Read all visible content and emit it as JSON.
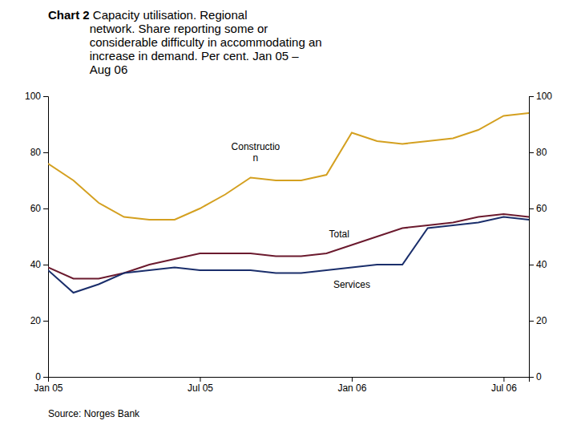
{
  "chart_data": {
    "type": "line",
    "title": "Chart 2",
    "subtitle": " Capacity utilisation. Regional\nnetwork. Share reporting some or\nconsiderable difficulty in accommodating an\nincrease in demand. Per cent. Jan 05 –\nAug 06",
    "source": "Source: Norges Bank",
    "categories": [
      "Jan 05",
      null,
      null,
      null,
      null,
      null,
      "Jul 05",
      null,
      null,
      null,
      null,
      null,
      "Jan 06",
      null,
      null,
      null,
      null,
      null,
      "Jul 06",
      null
    ],
    "series": [
      {
        "name": "Construction",
        "color": "#D4A020",
        "values": [
          76,
          70,
          62,
          57,
          56,
          56,
          60,
          65,
          71,
          70,
          70,
          72,
          87,
          84,
          83,
          84,
          85,
          88,
          93,
          94
        ]
      },
      {
        "name": "Total",
        "color": "#6B1A2E",
        "values": [
          39,
          35,
          35,
          37,
          40,
          42,
          44,
          44,
          44,
          43,
          43,
          44,
          47,
          50,
          53,
          54,
          55,
          57,
          58,
          57
        ]
      },
      {
        "name": "Services",
        "color": "#1A2E6B",
        "values": [
          38,
          30,
          33,
          37,
          38,
          39,
          38,
          38,
          38,
          37,
          37,
          38,
          39,
          40,
          40,
          53,
          54,
          55,
          57,
          56
        ]
      }
    ],
    "annotations": [
      {
        "text": "Constructio\nn",
        "x": 8.2,
        "y": 76
      },
      {
        "text": "Total",
        "x": 11.5,
        "y": 51
      },
      {
        "text": "Services",
        "x": 12.0,
        "y": 33
      }
    ],
    "ylim": [
      0,
      100
    ],
    "yticks": [
      0,
      20,
      40,
      60,
      80,
      100
    ],
    "y2lim": [
      0,
      100
    ],
    "y2ticks": [
      0,
      20,
      40,
      60,
      80,
      100
    ],
    "grid": false
  }
}
